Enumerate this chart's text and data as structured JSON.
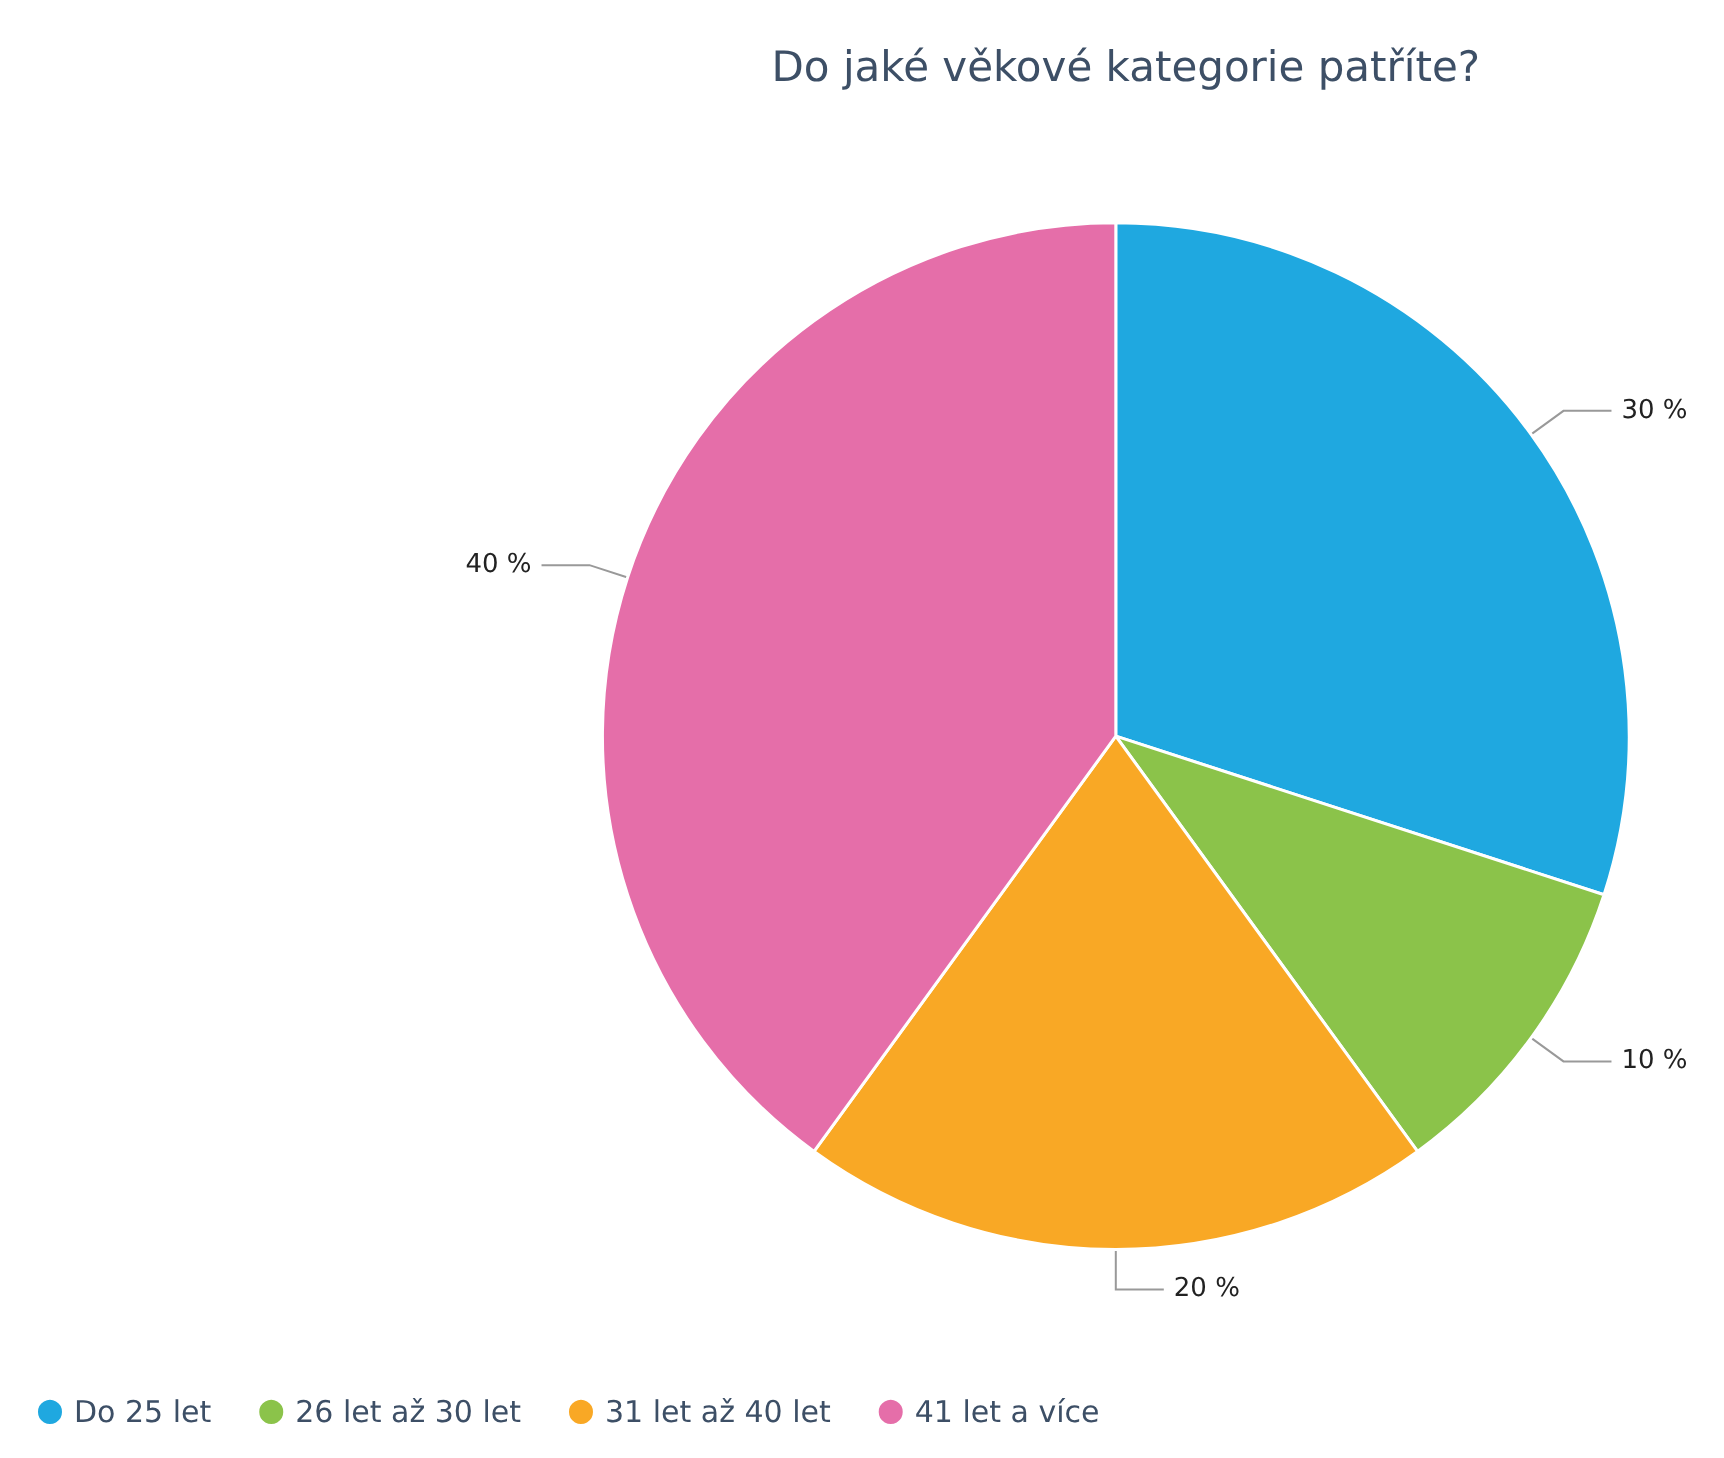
{
  "chart_data": {
    "type": "pie",
    "title": "Do jaké věkové kategorie patříte?",
    "categories": [
      "Do 25 let",
      "26 let až 30 let",
      "31 let až 40 let",
      "41 let a více"
    ],
    "values": [
      30,
      10,
      20,
      40
    ],
    "value_labels": [
      "30 %",
      "10 %",
      "20 %",
      "40 %"
    ],
    "colors": [
      "#1fa8e0",
      "#8bc34a",
      "#f9a825",
      "#e56ea9"
    ],
    "legend": "bottom left"
  }
}
